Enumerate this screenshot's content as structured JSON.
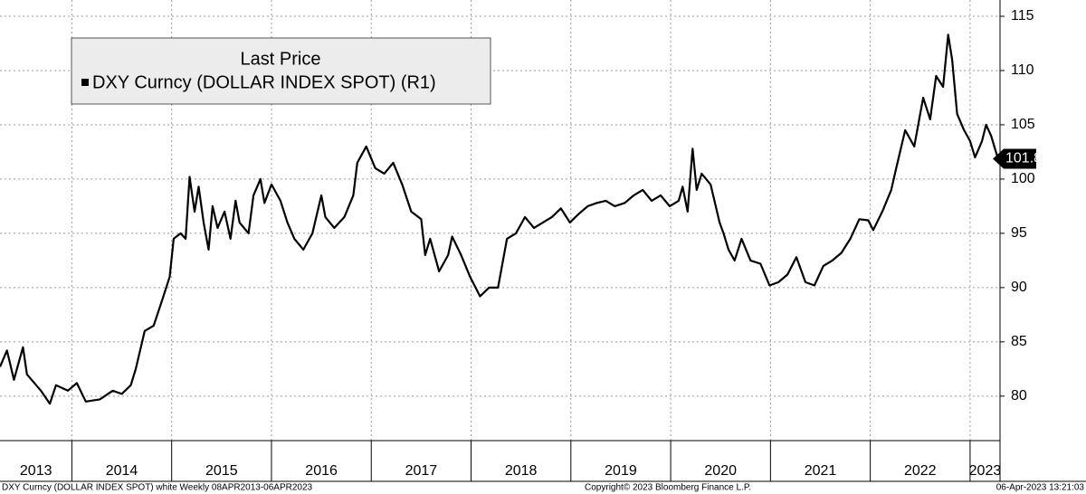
{
  "chart_data": {
    "type": "line",
    "legend_title": "Last Price",
    "footer_left": "DXY Curncy (DOLLAR INDEX SPOT) white  Weekly 08APR2013-06APR2023",
    "footer_center": "Copyright© 2023 Bloomberg Finance L.P.",
    "footer_right": "06-Apr-2023 13:21:03",
    "x": [
      2013.28,
      2013.35,
      2013.42,
      2013.51,
      2013.55,
      2013.69,
      2013.78,
      2013.84,
      2013.96,
      2014.05,
      2014.14,
      2014.28,
      2014.41,
      2014.5,
      2014.59,
      2014.64,
      2014.73,
      2014.82,
      2014.91,
      2014.98,
      2015.02,
      2015.09,
      2015.14,
      2015.18,
      2015.23,
      2015.27,
      2015.32,
      2015.37,
      2015.41,
      2015.46,
      2015.53,
      2015.59,
      2015.64,
      2015.68,
      2015.77,
      2015.82,
      2015.89,
      2015.93,
      2016.0,
      2016.09,
      2016.16,
      2016.23,
      2016.32,
      2016.41,
      2016.5,
      2016.54,
      2016.63,
      2016.73,
      2016.82,
      2016.86,
      2016.95,
      2017.04,
      2017.13,
      2017.22,
      2017.31,
      2017.4,
      2017.5,
      2017.54,
      2017.59,
      2017.68,
      2017.77,
      2017.81,
      2017.9,
      2017.99,
      2018.09,
      2018.18,
      2018.27,
      2018.36,
      2018.45,
      2018.54,
      2018.63,
      2018.72,
      2018.81,
      2018.9,
      2018.99,
      2019.08,
      2019.17,
      2019.26,
      2019.35,
      2019.44,
      2019.54,
      2019.63,
      2019.72,
      2019.81,
      2019.9,
      2019.99,
      2020.08,
      2020.12,
      2020.17,
      2020.22,
      2020.26,
      2020.31,
      2020.4,
      2020.49,
      2020.53,
      2020.58,
      2020.64,
      2020.71,
      2020.8,
      2020.9,
      2020.99,
      2021.08,
      2021.17,
      2021.26,
      2021.35,
      2021.44,
      2021.53,
      2021.62,
      2021.71,
      2021.8,
      2021.89,
      2021.98,
      2022.03,
      2022.12,
      2022.21,
      2022.26,
      2022.35,
      2022.44,
      2022.53,
      2022.6,
      2022.66,
      2022.73,
      2022.78,
      2022.82,
      2022.87,
      2022.94,
      2023.0,
      2023.05,
      2023.12,
      2023.16,
      2023.21,
      2023.28
    ],
    "series": [
      {
        "name": "DXY Curncy (DOLLAR INDEX SPOT)  (R1)",
        "color": "#000000",
        "values": [
          82.7,
          84.2,
          81.5,
          84.5,
          82,
          80.5,
          79.3,
          81,
          80.5,
          81.2,
          79.5,
          79.7,
          80.5,
          80.2,
          81,
          82.5,
          86,
          86.5,
          89,
          91,
          94.5,
          95,
          94.5,
          100.2,
          97,
          99.3,
          96,
          93.5,
          97.5,
          95.5,
          97,
          94.5,
          98,
          96,
          95,
          98.5,
          100,
          97.8,
          99.5,
          98,
          96,
          94.5,
          93.5,
          95,
          98.5,
          96.5,
          95.5,
          96.5,
          98.5,
          101.5,
          103,
          101,
          100.5,
          101.5,
          99.5,
          97,
          96.3,
          93,
          94.5,
          91.5,
          93,
          94.7,
          93,
          91,
          89.2,
          90,
          90,
          94.5,
          95,
          96.5,
          95.5,
          96,
          96.5,
          97.3,
          96,
          96.8,
          97.5,
          97.8,
          98,
          97.5,
          97.8,
          98.5,
          99,
          98,
          98.5,
          97.5,
          98,
          99.3,
          97,
          102.8,
          99,
          100.5,
          99.5,
          96,
          95,
          93.5,
          92.5,
          94.5,
          92.5,
          92.2,
          90.2,
          90.5,
          91.2,
          92.8,
          90.5,
          90.2,
          92,
          92.5,
          93.2,
          94.5,
          96.3,
          96.2,
          95.3,
          97,
          99,
          101,
          104.5,
          103,
          107.5,
          105.5,
          109.5,
          108.5,
          113.3,
          111,
          106,
          104.5,
          103.5,
          102,
          103.5,
          105,
          104,
          101.871
        ]
      }
    ],
    "xlim": [
      2013.28,
      2023.3
    ],
    "xticks": [
      {
        "value": 2013,
        "label": "2013"
      },
      {
        "value": 2014,
        "label": "2014"
      },
      {
        "value": 2015,
        "label": "2015"
      },
      {
        "value": 2016,
        "label": "2016"
      },
      {
        "value": 2017,
        "label": "2017"
      },
      {
        "value": 2018,
        "label": "2018"
      },
      {
        "value": 2019,
        "label": "2019"
      },
      {
        "value": 2020,
        "label": "2020"
      },
      {
        "value": 2021,
        "label": "2021"
      },
      {
        "value": 2022,
        "label": "2022"
      },
      {
        "value": 2023,
        "label": "2023"
      }
    ],
    "ylim": [
      75.9,
      116.5
    ],
    "yticks": [
      80,
      85,
      90,
      95,
      100,
      105,
      110,
      115
    ],
    "grid": true
  }
}
